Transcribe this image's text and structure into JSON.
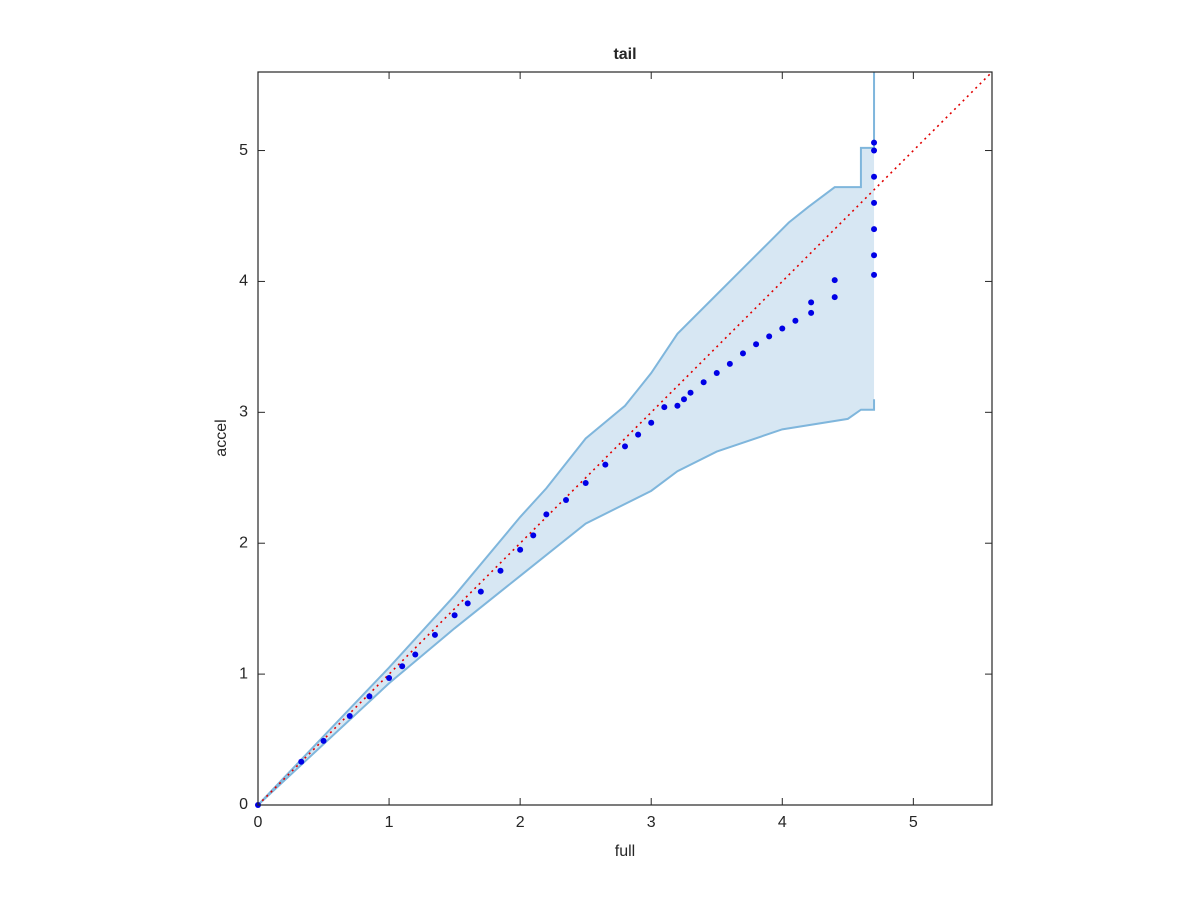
{
  "chart_data": {
    "type": "scatter",
    "title": "tail",
    "x_label": "full",
    "y_label": "accel",
    "xlim": [
      0,
      5.6
    ],
    "ylim": [
      0,
      5.6
    ],
    "xticks": [
      0,
      1,
      2,
      3,
      4,
      5
    ],
    "yticks": [
      0,
      1,
      2,
      3,
      4,
      5
    ],
    "series": [
      {
        "color": "#0000e6",
        "x": [
          0,
          0.33,
          0.5,
          0.7,
          0.85,
          1,
          1.1,
          1.2,
          1.35,
          1.5,
          1.6,
          1.7,
          1.85,
          2,
          2.1,
          2.2,
          2.35,
          2.5,
          2.65,
          2.8,
          2.9,
          3.0,
          3.1,
          3.2,
          3.25,
          3.3,
          3.4,
          3.5,
          3.6,
          3.7,
          3.8,
          3.9,
          4.0,
          4.1,
          4.22,
          4.22,
          4.4,
          4.4,
          4.7,
          4.7,
          4.7,
          4.7,
          4.7,
          4.7,
          4.7
        ],
        "y": [
          0,
          0.33,
          0.49,
          0.68,
          0.83,
          0.97,
          1.06,
          1.15,
          1.3,
          1.45,
          1.54,
          1.63,
          1.79,
          1.95,
          2.06,
          2.22,
          2.33,
          2.46,
          2.6,
          2.74,
          2.83,
          2.92,
          3.04,
          3.05,
          3.1,
          3.15,
          3.23,
          3.3,
          3.37,
          3.45,
          3.52,
          3.58,
          3.64,
          3.7,
          3.76,
          3.84,
          3.88,
          4.01,
          4.05,
          4.2,
          4.4,
          4.6,
          4.8,
          5.0,
          5.06
        ]
      }
    ],
    "band": {
      "color": "#7fb6dc",
      "fill": "#d7e7f3",
      "upper": {
        "x": [
          0,
          1,
          1.5,
          2,
          2.2,
          2.5,
          2.8,
          3.0,
          3.2,
          3.5,
          3.7,
          3.9,
          4.05,
          4.2,
          4.4,
          4.6,
          4.6,
          4.7,
          4.7
        ],
        "y": [
          0,
          1.05,
          1.6,
          2.2,
          2.42,
          2.8,
          3.05,
          3.3,
          3.6,
          3.9,
          4.1,
          4.3,
          4.45,
          4.57,
          4.72,
          4.72,
          5.02,
          5.02,
          5.6
        ]
      },
      "lower": {
        "x": [
          0,
          1,
          1.5,
          2,
          2.5,
          3.0,
          3.2,
          3.5,
          4.0,
          4.5,
          4.6,
          4.7,
          4.7
        ],
        "y": [
          0,
          0.93,
          1.35,
          1.75,
          2.15,
          2.4,
          2.55,
          2.7,
          2.87,
          2.95,
          3.02,
          3.02,
          3.1
        ]
      }
    },
    "reference_line": {
      "color": "#e00000",
      "x": [
        0,
        5.6
      ],
      "y": [
        0,
        5.6
      ]
    }
  }
}
